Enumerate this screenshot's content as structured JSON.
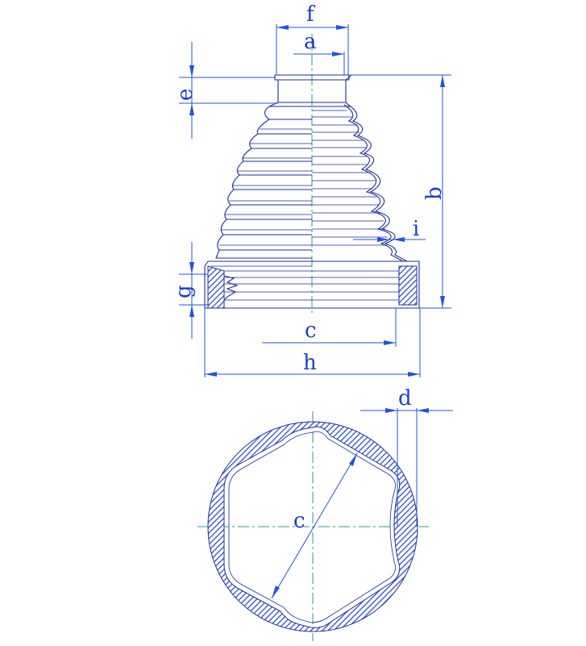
{
  "labels": {
    "a": "a",
    "b": "b",
    "c_side": "c",
    "c_section": "c",
    "d": "d",
    "e": "e",
    "f": "f",
    "g": "g",
    "h": "h",
    "i": "i"
  },
  "colors": {
    "dimension": "#1f55e0",
    "outline": "#1d2b9e",
    "hatch": "#2b4fd6",
    "centerline": "#2e9a8c"
  }
}
